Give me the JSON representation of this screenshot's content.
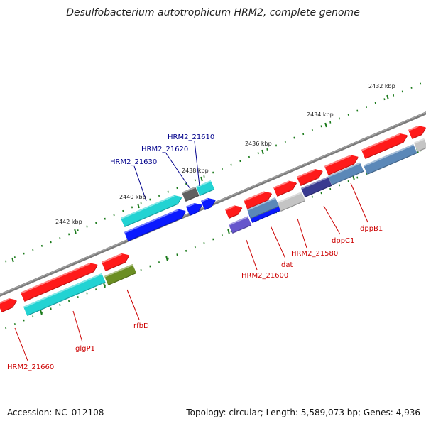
{
  "title": "Desulfobacterium autotrophicum HRM2, complete genome",
  "footer": {
    "accession": "Accession: NC_012108",
    "summary": "Topology: circular; Length: 5,589,073 bp; Genes: 4,936"
  },
  "colors": {
    "backbone": "#808080",
    "tick": "#1a7a1a",
    "label_forward": "#00008b",
    "label_reverse": "#cc0000",
    "red": "#ff1a1a",
    "cyan": "#22d3d3",
    "blue": "#0a1aff",
    "steel": "#5b88b8",
    "lightgray": "#c4c4c4",
    "darkgray": "#606060",
    "olive": "#6b8e23",
    "slate": "#6655cc",
    "navy": "#3a3a90"
  },
  "ticks": [
    {
      "label": "2432 kbp"
    },
    {
      "label": "2434 kbp"
    },
    {
      "label": "2436 kbp"
    },
    {
      "label": "2438 kbp"
    },
    {
      "label": "2440 kbp"
    },
    {
      "label": "2442 kbp"
    }
  ],
  "gene_labels": [
    {
      "text": "HRM2_21610",
      "strand": "forward"
    },
    {
      "text": "HRM2_21620",
      "strand": "forward"
    },
    {
      "text": "HRM2_21630",
      "strand": "forward"
    },
    {
      "text": "dppB1",
      "strand": "reverse"
    },
    {
      "text": "dppC1",
      "strand": "reverse"
    },
    {
      "text": "HRM2_21580",
      "strand": "reverse"
    },
    {
      "text": "dat",
      "strand": "reverse"
    },
    {
      "text": "HRM2_21600",
      "strand": "reverse"
    },
    {
      "text": "rfbD",
      "strand": "reverse"
    },
    {
      "text": "glgP1",
      "strand": "reverse"
    },
    {
      "text": "HRM2_21660",
      "strand": "reverse"
    }
  ]
}
